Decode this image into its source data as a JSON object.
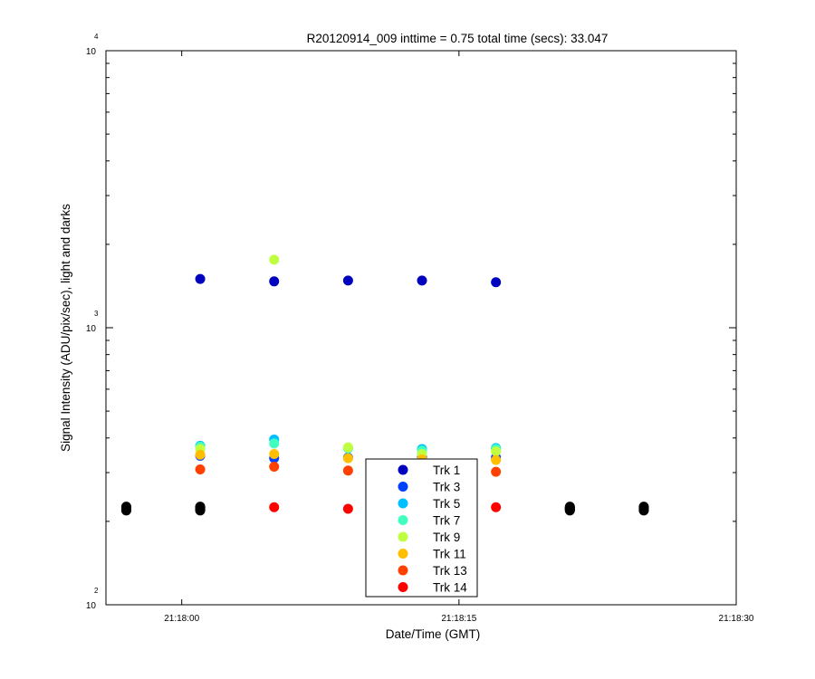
{
  "chart_data": {
    "type": "scatter",
    "title": "R20120914_009 inttime = 0.75 total time (secs): 33.047",
    "xlabel": "Date/Time (GMT)",
    "ylabel": "Signal Intensity (ADU/pix/sec), light and darks",
    "y_scale": "log",
    "ylim": [
      100,
      10000
    ],
    "xlim": [
      "21:17:55.9",
      "21:18:30"
    ],
    "x_ticks": [
      "21:18:00",
      "21:18:15",
      "21:18:30"
    ],
    "y_ticks": [
      {
        "base": "10",
        "exp": "2"
      },
      {
        "base": "10",
        "exp": "3"
      },
      {
        "base": "10",
        "exp": "4"
      }
    ],
    "grid": false,
    "legend_position": "bottom-center",
    "series": [
      {
        "name": "Trk 1",
        "color": "#0000bf",
        "x": [
          "21:18:01.0",
          "21:18:05.0",
          "21:18:09.0",
          "21:18:13.0",
          "21:18:17.0"
        ],
        "y": [
          1500,
          1470,
          1480,
          1480,
          1460
        ]
      },
      {
        "name": "Trk 3",
        "color": "#0040ff",
        "x": [
          "21:18:01.0",
          "21:18:05.0",
          "21:18:09.0",
          "21:18:13.0",
          "21:18:17.0"
        ],
        "y": [
          345,
          338,
          340,
          342,
          340
        ]
      },
      {
        "name": "Trk 5",
        "color": "#00bfff",
        "x": [
          "21:18:01.0",
          "21:18:05.0",
          "21:18:09.0",
          "21:18:13.0",
          "21:18:17.0"
        ],
        "y": [
          375,
          395,
          368,
          365,
          368
        ]
      },
      {
        "name": "Trk 7",
        "color": "#40ffbf",
        "x": [
          "21:18:01.0",
          "21:18:05.0",
          "21:18:09.0",
          "21:18:13.0",
          "21:18:17.0"
        ],
        "y": [
          372,
          382,
          367,
          360,
          365
        ]
      },
      {
        "name": "Trk 9",
        "color": "#bfff40",
        "x": [
          "21:18:01.0",
          "21:18:05.0",
          "21:18:09.0",
          "21:18:13.0",
          "21:18:17.0"
        ],
        "y": [
          365,
          1760,
          370,
          350,
          358
        ]
      },
      {
        "name": "Trk 11",
        "color": "#ffbf00",
        "x": [
          "21:18:01.0",
          "21:18:05.0",
          "21:18:09.0",
          "21:18:13.0",
          "21:18:17.0"
        ],
        "y": [
          348,
          350,
          338,
          335,
          333
        ]
      },
      {
        "name": "Trk 13",
        "color": "#ff4000",
        "x": [
          "21:18:01.0",
          "21:18:05.0",
          "21:18:09.0",
          "21:18:13.0",
          "21:18:17.0"
        ],
        "y": [
          308,
          315,
          305,
          303,
          302
        ]
      },
      {
        "name": "Trk 14",
        "color": "#ff0000",
        "x": [
          "21:18:01.0",
          "21:18:05.0",
          "21:18:09.0",
          "21:18:13.0",
          "21:18:17.0"
        ],
        "y": [
          224,
          225,
          222,
          223,
          225
        ]
      },
      {
        "color": "#000000",
        "x": [
          "21:17:57.0",
          "21:17:57.0",
          "21:17:57.0",
          "21:17:57.0",
          "21:17:57.0",
          "21:17:57.0",
          "21:17:57.0",
          "21:17:57.0",
          "21:18:01.0",
          "21:18:01.0",
          "21:18:01.0",
          "21:18:01.0",
          "21:18:01.0",
          "21:18:01.0",
          "21:18:01.0",
          "21:18:01.0",
          "21:18:21.0",
          "21:18:21.0",
          "21:18:21.0",
          "21:18:21.0",
          "21:18:21.0",
          "21:18:21.0",
          "21:18:21.0",
          "21:18:21.0",
          "21:18:25.0",
          "21:18:25.0",
          "21:18:25.0",
          "21:18:25.0",
          "21:18:25.0",
          "21:18:25.0",
          "21:18:25.0",
          "21:18:25.0"
        ],
        "y": [
          219,
          220,
          221,
          222,
          223,
          224,
          225,
          226,
          219,
          220,
          221,
          222,
          223,
          224,
          225,
          226,
          219,
          220,
          221,
          222,
          223,
          224,
          225,
          226,
          219,
          220,
          221,
          222,
          223,
          224,
          225,
          226
        ]
      }
    ]
  }
}
